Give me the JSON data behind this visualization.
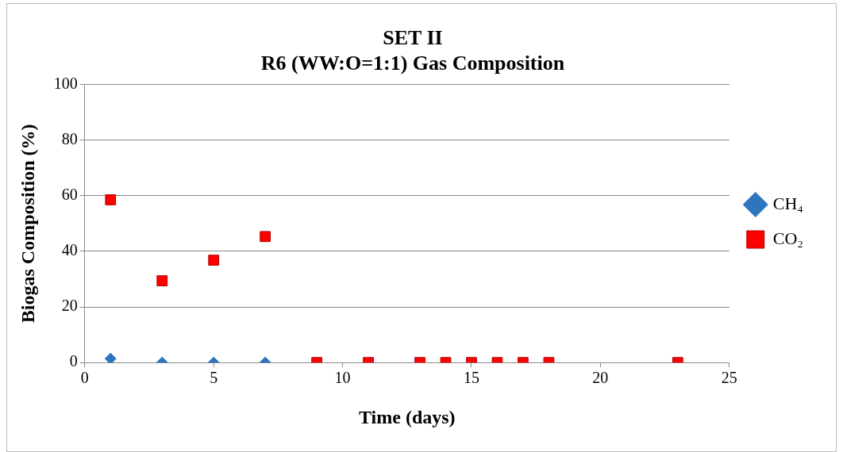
{
  "chart_data": {
    "type": "scatter",
    "title": [
      "SET II",
      "R6 (WW:O=1:1) Gas Composition"
    ],
    "xlabel": "Time (days)",
    "ylabel": "Biogas Composition (%)",
    "xlim": [
      0,
      25
    ],
    "xticks": [
      0,
      5,
      10,
      15,
      20,
      25
    ],
    "ylim": [
      0,
      100
    ],
    "yticks": [
      0,
      20,
      40,
      60,
      80,
      100
    ],
    "grid": "y",
    "legend": "right",
    "series": [
      {
        "name": "CH₄",
        "color": "#2e75c0",
        "marker": "diamond",
        "x": [
          1,
          3,
          5,
          7
        ],
        "values": [
          1.4,
          0,
          0,
          0
        ]
      },
      {
        "name": "CO₂",
        "color": "#ff0000",
        "marker": "square",
        "x": [
          1,
          3,
          5,
          7,
          9,
          11,
          13,
          14,
          15,
          16,
          17,
          18,
          23
        ],
        "values": [
          58.5,
          29.4,
          36.8,
          45.3,
          0,
          0,
          0,
          0,
          0,
          0,
          0,
          0,
          0
        ]
      }
    ]
  }
}
